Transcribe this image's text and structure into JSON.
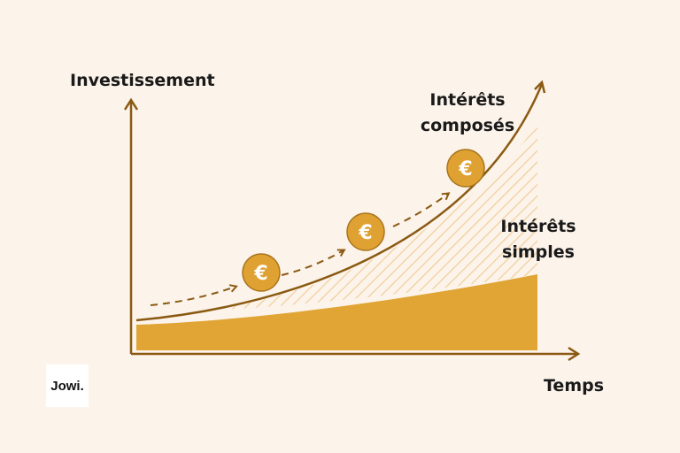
{
  "y_axis_label": "Investissement",
  "x_axis_label": "Temps",
  "compound_label": [
    "Intérêts",
    "composés"
  ],
  "simple_label": [
    "Intérêts",
    "simples"
  ],
  "coin_symbol": "€",
  "logo": "Jowi.",
  "colors": {
    "background": "#fcf3ea",
    "axis": "#8a5a12",
    "fill": "#e0a534",
    "coin": "#dfa232",
    "hatch": "#f0cf9e"
  }
}
